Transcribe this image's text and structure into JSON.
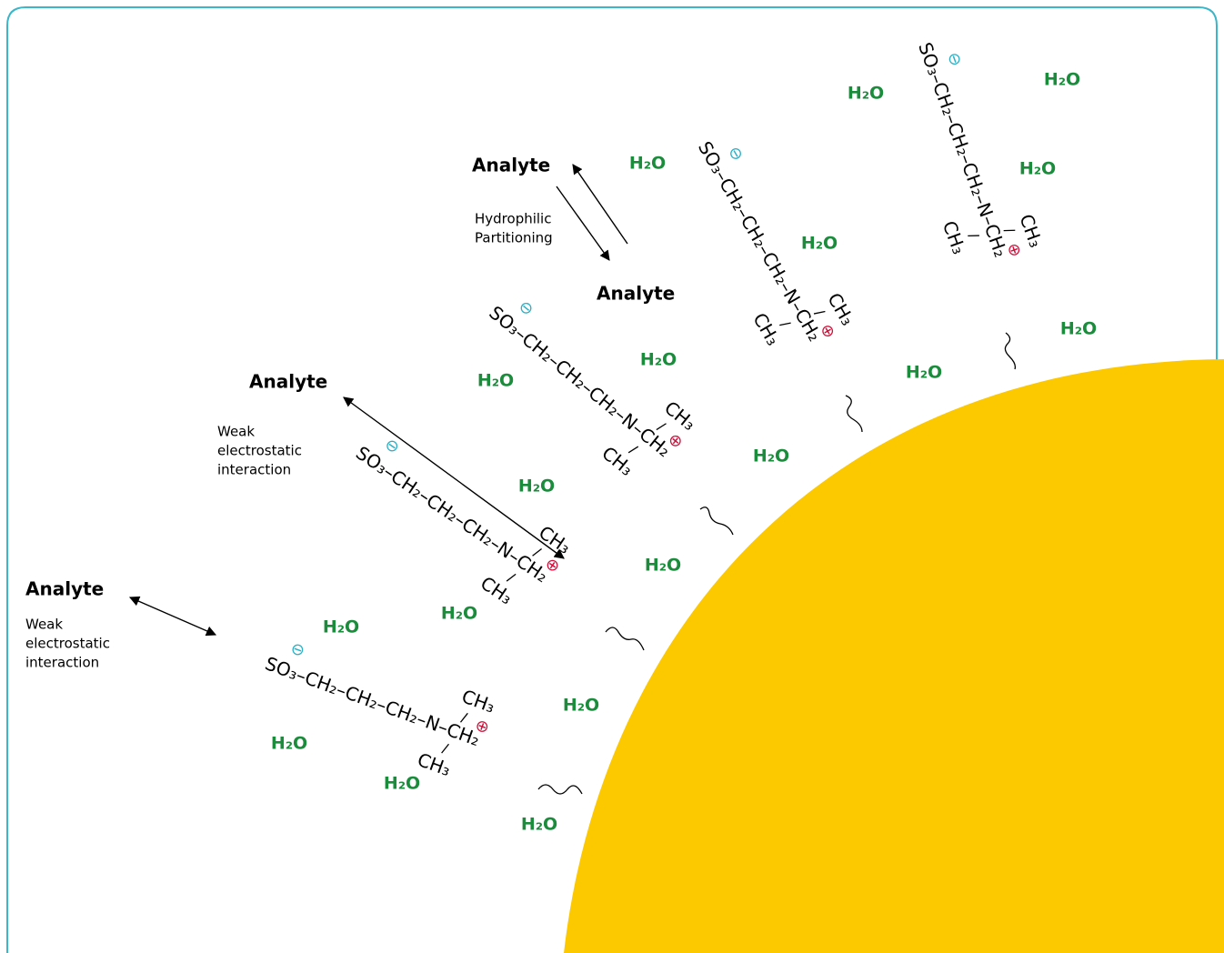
{
  "labels": {
    "analyte_top": "Analyte",
    "analyte_partitioned": "Analyte",
    "analyte_middle": "Analyte",
    "analyte_left": "Analyte",
    "hydrophilic_partitioning": [
      "Hydrophilic",
      "Partitioning"
    ],
    "weak_interaction_middle": [
      "Weak",
      "electrostatic",
      "interaction"
    ],
    "weak_interaction_left": [
      "Weak",
      "electrostatic",
      "interaction"
    ]
  },
  "waters": [
    "H₂O",
    "H₂O",
    "H₂O",
    "H₂O",
    "H₂O",
    "H₂O",
    "H₂O",
    "H₂O",
    "H₂O",
    "H₂O",
    "H₂O",
    "H₂O",
    "H₂O",
    "H₂O",
    "H₂O",
    "H₂O",
    "H₂O",
    "H₂O"
  ],
  "chains": [
    {
      "backbone": "SO₃–CH₂–CH₂–CH₂–N–CH₂",
      "methyl_top": "CH₃",
      "methyl_bottom": "CH₃",
      "anion": "⊖",
      "cation": "⊕"
    },
    {
      "backbone": "SO₃–CH₂–CH₂–CH₂–N–CH₂",
      "methyl_top": "CH₃",
      "methyl_bottom": "CH₃",
      "anion": "⊖",
      "cation": "⊕"
    },
    {
      "backbone": "SO₃–CH₂–CH₂–CH₂–N–CH₂",
      "methyl_top": "CH₃",
      "methyl_bottom": "CH₃",
      "anion": "⊖",
      "cation": "⊕"
    },
    {
      "backbone": "SO₃–CH₂–CH₂–CH₂–N–CH₂",
      "methyl_top": "CH₃",
      "methyl_bottom": "CH₃",
      "anion": "⊖",
      "cation": "⊕"
    },
    {
      "backbone": "SO₃–CH₂–CH₂–CH₂–N–CH₂",
      "methyl_top": "CH₃",
      "methyl_bottom": "CH₃",
      "anion": "⊖",
      "cation": "⊕"
    }
  ]
}
